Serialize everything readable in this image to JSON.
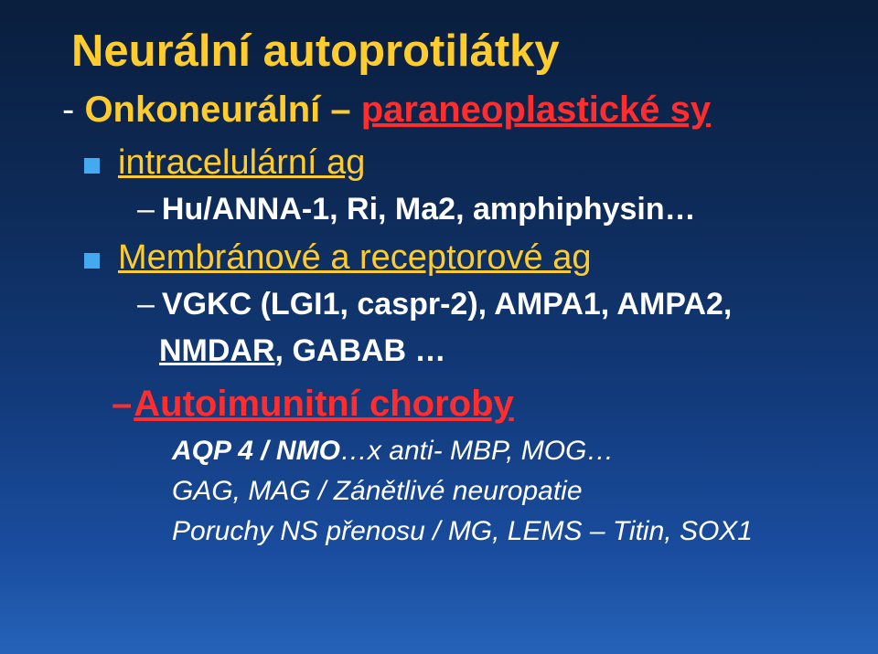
{
  "colors": {
    "bg_gradient_top": "#0a1e3d",
    "bg_gradient_bottom": "#2563b8",
    "title_yellow": "#ffcc2e",
    "red": "#ff2e2e",
    "white": "#ffffff",
    "bullet_blue": "#45a9f0"
  },
  "typography": {
    "title_fontsize": 49,
    "level1_fontsize": 40,
    "bullet_heading_fontsize": 38,
    "sub_fontsize": 34,
    "sub2_fontsize": 30,
    "font_family": "Arial"
  },
  "title": "Neurální autoprotilátky",
  "line1": {
    "dash": "- ",
    "onkoneur": "Onkoneurální – ",
    "paraneo": "paraneoplastické sy"
  },
  "bullet1": {
    "heading": "intracelulární ag",
    "sub_dash": "–",
    "sub": "Hu/ANNA-1, Ri, Ma2, amphiphysin…"
  },
  "bullet2": {
    "heading": "Membránové a receptorové ag",
    "sub_dash": "–",
    "sub_line1": "VGKC (LGI1, caspr-2), AMPA1, AMPA2,",
    "sub_line2_u": "NMDAR",
    "sub_line2_rest": ", GABAB …"
  },
  "auto": {
    "dash": "–",
    "heading": "Autoimunitní choroby"
  },
  "sub2": {
    "l1_bold": "AQP 4 / NMO",
    "l1_rest": "…x  anti- MBP, MOG…",
    "l2": "GAG, MAG / Zánětlivé neuropatie",
    "l3": "Poruchy NS přenosu / MG, LEMS – Titin, SOX1"
  }
}
